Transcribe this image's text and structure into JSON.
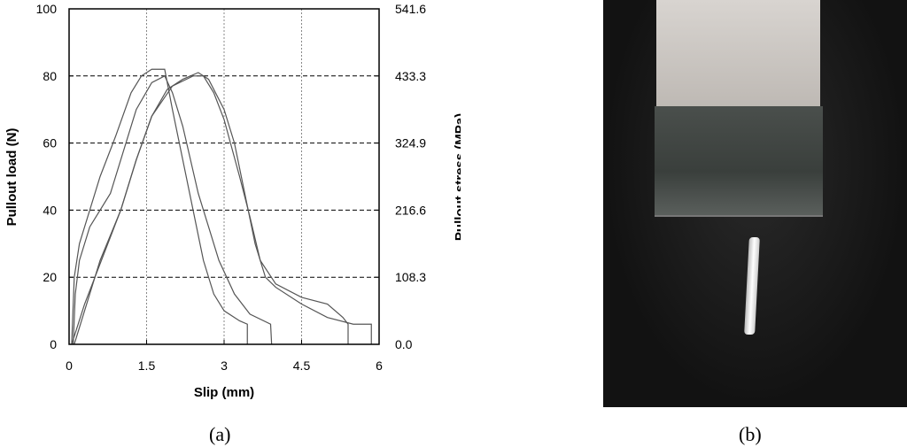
{
  "chart_data": {
    "type": "line",
    "xlabel": "Slip (mm)",
    "ylabel": "Pullout load (N)",
    "y2label": "Pullout stress (MPa)",
    "xlim": [
      0,
      6
    ],
    "ylim": [
      0,
      100
    ],
    "xticks": [
      "0",
      "1.5",
      "3",
      "4.5",
      "6"
    ],
    "yticks": [
      "0",
      "20",
      "40",
      "60",
      "80",
      "100"
    ],
    "y2ticks": [
      "0.0",
      "108.3",
      "216.6",
      "324.9",
      "433.3",
      "541.6"
    ],
    "grid": "dashed horizontal, dotted vertical",
    "line_color": "#555555",
    "series": [
      {
        "points": [
          [
            0.05,
            0
          ],
          [
            0.1,
            20
          ],
          [
            0.2,
            30
          ],
          [
            0.4,
            40
          ],
          [
            0.6,
            50
          ],
          [
            0.9,
            62
          ],
          [
            1.2,
            75
          ],
          [
            1.4,
            80
          ],
          [
            1.6,
            82
          ],
          [
            1.85,
            82
          ],
          [
            1.9,
            78
          ],
          [
            2.0,
            70
          ],
          [
            2.2,
            55
          ],
          [
            2.4,
            40
          ],
          [
            2.6,
            25
          ],
          [
            2.8,
            15
          ],
          [
            3.0,
            10
          ],
          [
            3.3,
            7
          ],
          [
            3.45,
            6
          ],
          [
            3.45,
            0
          ]
        ]
      },
      {
        "points": [
          [
            0.08,
            0
          ],
          [
            0.12,
            15
          ],
          [
            0.2,
            25
          ],
          [
            0.4,
            35
          ],
          [
            0.8,
            45
          ],
          [
            1.0,
            55
          ],
          [
            1.3,
            70
          ],
          [
            1.6,
            78
          ],
          [
            1.85,
            80
          ],
          [
            2.0,
            75
          ],
          [
            2.2,
            65
          ],
          [
            2.5,
            45
          ],
          [
            2.7,
            35
          ],
          [
            2.9,
            25
          ],
          [
            3.2,
            15
          ],
          [
            3.5,
            9
          ],
          [
            3.9,
            6
          ],
          [
            3.92,
            0
          ]
        ]
      },
      {
        "points": [
          [
            0.1,
            0
          ],
          [
            0.3,
            10
          ],
          [
            0.6,
            25
          ],
          [
            1.0,
            40
          ],
          [
            1.3,
            55
          ],
          [
            1.6,
            68
          ],
          [
            1.9,
            76
          ],
          [
            2.2,
            79
          ],
          [
            2.5,
            81
          ],
          [
            2.7,
            79
          ],
          [
            3.0,
            70
          ],
          [
            3.2,
            60
          ],
          [
            3.4,
            45
          ],
          [
            3.6,
            30
          ],
          [
            3.8,
            20
          ],
          [
            4.0,
            17
          ],
          [
            4.5,
            12
          ],
          [
            5.0,
            8
          ],
          [
            5.5,
            6
          ],
          [
            5.85,
            6
          ],
          [
            5.85,
            0
          ]
        ]
      },
      {
        "points": [
          [
            0.05,
            0
          ],
          [
            0.3,
            12
          ],
          [
            0.7,
            28
          ],
          [
            1.0,
            40
          ],
          [
            1.3,
            55
          ],
          [
            1.6,
            68
          ],
          [
            2.0,
            77
          ],
          [
            2.4,
            80
          ],
          [
            2.6,
            80
          ],
          [
            2.8,
            75
          ],
          [
            3.0,
            67
          ],
          [
            3.3,
            50
          ],
          [
            3.5,
            38
          ],
          [
            3.7,
            25
          ],
          [
            4.0,
            18
          ],
          [
            4.5,
            14
          ],
          [
            5.0,
            12
          ],
          [
            5.3,
            8
          ],
          [
            5.4,
            6
          ],
          [
            5.4,
            0
          ]
        ]
      }
    ]
  },
  "captions": {
    "a": "(a)",
    "b": "(b)"
  }
}
